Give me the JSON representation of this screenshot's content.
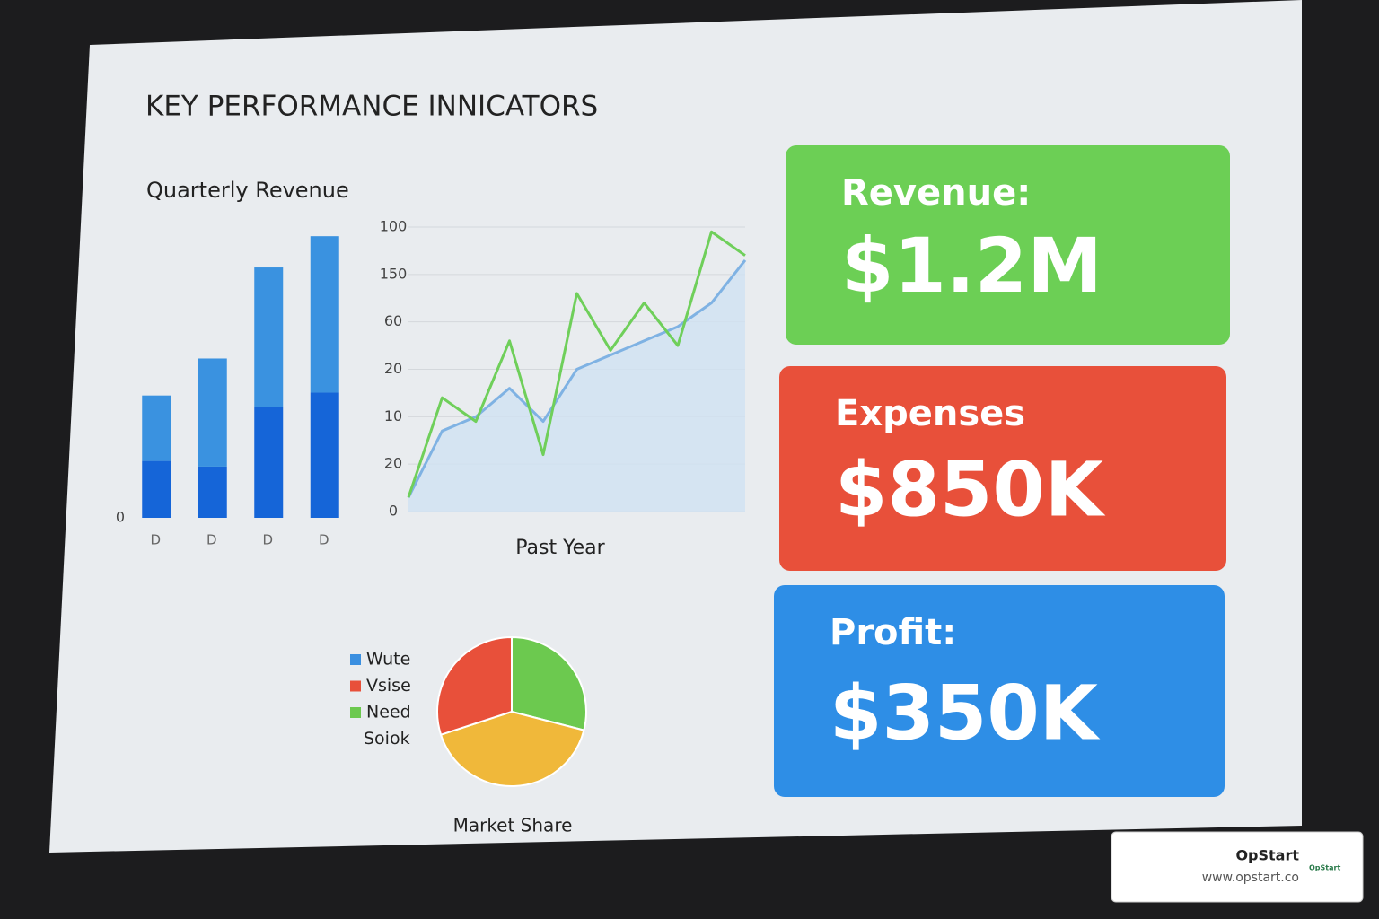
{
  "title": "KEY PERFORMANCE INNICATORS",
  "chart_data": [
    {
      "type": "bar",
      "title": "Quarterly Revenue",
      "stacked": true,
      "categories": [
        "D",
        "D",
        "D",
        "D"
      ],
      "series": [
        {
          "color": "#1565d8",
          "values": [
            20,
            18,
            39,
            44
          ]
        },
        {
          "color": "#3a92e0",
          "values": [
            23,
            38,
            49,
            55
          ]
        }
      ],
      "ylim": [
        0,
        100
      ],
      "yticks": [
        0
      ]
    },
    {
      "type": "line",
      "xlabel": "Past Year",
      "categories": [
        null,
        null,
        null,
        null,
        null,
        null,
        null,
        null,
        null,
        null,
        null
      ],
      "y_axis_labels": [
        "0",
        "20",
        "10",
        "20",
        "60",
        "150",
        "100"
      ],
      "ylim": [
        0,
        6
      ],
      "grid": true,
      "series": [
        {
          "color": "#7fb2e3",
          "area": true,
          "values": [
            0.3,
            1.7,
            2.0,
            2.6,
            1.9,
            3.0,
            3.3,
            3.6,
            3.9,
            4.4,
            5.3
          ]
        },
        {
          "color": "#6fcf5a",
          "area": false,
          "values": [
            0.3,
            2.4,
            1.9,
            3.6,
            1.2,
            4.6,
            3.4,
            4.4,
            3.5,
            5.9,
            5.4
          ]
        }
      ]
    },
    {
      "type": "pie",
      "title": "Market Share",
      "categories": [
        "Wute",
        "Vsise",
        "Need",
        "Soiok"
      ],
      "values": [
        0,
        30,
        29,
        41
      ],
      "colors": [
        "#3a8fe0",
        "#e8503a",
        "#6cc94f",
        "#f0b83a"
      ]
    }
  ],
  "kpis": [
    {
      "label": "Revenue:",
      "value": "$1.2M",
      "color": "#6ccf55"
    },
    {
      "label": "Expenses",
      "value": "$850K",
      "color": "#e8503a"
    },
    {
      "label": "Profit:",
      "value": "$350K",
      "color": "#2e8ee6"
    }
  ],
  "badge": {
    "name": "OpStart",
    "url": "www.opstart.co",
    "logo": "OpStart"
  }
}
